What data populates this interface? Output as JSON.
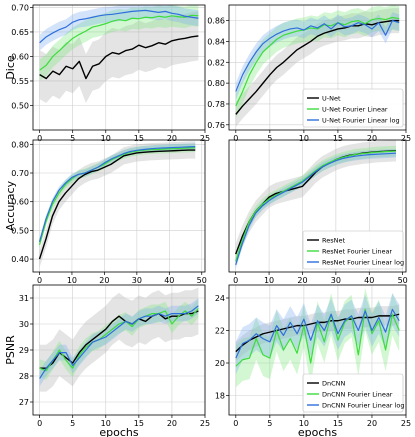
{
  "colors": {
    "black": "#000000",
    "green": "#3ddc3d",
    "blue": "#2f6fdc",
    "grid": "#cfcfcf"
  },
  "chart_data": [
    {
      "type": "line",
      "ylabel": "Dice",
      "xlabel": "",
      "xlim": [
        -1,
        25
      ],
      "ylim": [
        0.45,
        0.705
      ],
      "xticks": [
        "0",
        "5",
        "10",
        "15",
        "20",
        "25"
      ],
      "xtick_values": [
        0,
        5,
        10,
        15,
        20,
        25
      ],
      "yticks": [
        "0.50",
        "0.55",
        "0.60",
        "0.65",
        "0.70"
      ],
      "ytick_values": [
        0.5,
        0.55,
        0.6,
        0.65,
        0.7
      ],
      "grid": true,
      "legend": [],
      "x": [
        0,
        1,
        2,
        3,
        4,
        5,
        6,
        7,
        8,
        9,
        10,
        11,
        12,
        13,
        14,
        15,
        16,
        17,
        18,
        19,
        20,
        21,
        22,
        23,
        24
      ],
      "series": [
        {
          "color": "black",
          "band": 0.05,
          "values": [
            0.563,
            0.555,
            0.57,
            0.563,
            0.58,
            0.575,
            0.59,
            0.555,
            0.58,
            0.585,
            0.6,
            0.608,
            0.605,
            0.612,
            0.615,
            0.623,
            0.618,
            0.622,
            0.628,
            0.625,
            0.632,
            0.635,
            0.637,
            0.64,
            0.642
          ]
        },
        {
          "color": "green",
          "band": 0.022,
          "values": [
            0.572,
            0.582,
            0.6,
            0.612,
            0.625,
            0.637,
            0.645,
            0.652,
            0.66,
            0.663,
            0.667,
            0.672,
            0.675,
            0.673,
            0.678,
            0.677,
            0.68,
            0.679,
            0.682,
            0.68,
            0.683,
            0.681,
            0.68,
            0.684,
            0.683
          ]
        },
        {
          "color": "blue",
          "band": 0.016,
          "values": [
            0.628,
            0.64,
            0.648,
            0.655,
            0.66,
            0.67,
            0.675,
            0.677,
            0.68,
            0.683,
            0.685,
            0.686,
            0.688,
            0.69,
            0.692,
            0.693,
            0.694,
            0.692,
            0.69,
            0.692,
            0.688,
            0.686,
            0.682,
            0.68,
            0.678
          ]
        }
      ]
    },
    {
      "type": "line",
      "ylabel": "",
      "xlabel": "",
      "xlim": [
        -1,
        25
      ],
      "ylim": [
        0.755,
        0.875
      ],
      "xticks": [
        "0",
        "5",
        "10",
        "15",
        "20",
        "25"
      ],
      "xtick_values": [
        0,
        5,
        10,
        15,
        20,
        25
      ],
      "yticks": [
        "0.76",
        "0.78",
        "0.80",
        "0.82",
        "0.84",
        "0.86"
      ],
      "ytick_values": [
        0.76,
        0.78,
        0.8,
        0.82,
        0.84,
        0.86
      ],
      "grid": true,
      "legend_position": "bottom-right",
      "legend": [
        {
          "label": "U-Net",
          "color": "black"
        },
        {
          "label": "U-Net Fourier Linear",
          "color": "green"
        },
        {
          "label": "U-Net Fourier Linear log",
          "color": "blue"
        }
      ],
      "x": [
        0,
        1,
        2,
        3,
        4,
        5,
        6,
        7,
        8,
        9,
        10,
        11,
        12,
        13,
        14,
        15,
        16,
        17,
        18,
        19,
        20,
        21,
        22,
        23,
        24
      ],
      "series": [
        {
          "color": "black",
          "band": 0.012,
          "values": [
            0.77,
            0.778,
            0.785,
            0.792,
            0.8,
            0.808,
            0.815,
            0.82,
            0.826,
            0.832,
            0.836,
            0.84,
            0.845,
            0.848,
            0.85,
            0.852,
            0.853,
            0.855,
            0.855,
            0.857,
            0.856,
            0.858,
            0.859,
            0.86,
            0.86
          ]
        },
        {
          "color": "green",
          "band": 0.012,
          "values": [
            0.778,
            0.792,
            0.808,
            0.82,
            0.83,
            0.836,
            0.842,
            0.846,
            0.848,
            0.85,
            0.851,
            0.853,
            0.852,
            0.856,
            0.855,
            0.858,
            0.856,
            0.859,
            0.86,
            0.857,
            0.861,
            0.862,
            0.861,
            0.863,
            0.862
          ]
        },
        {
          "color": "blue",
          "band": 0.008,
          "values": [
            0.792,
            0.808,
            0.82,
            0.83,
            0.838,
            0.843,
            0.847,
            0.85,
            0.852,
            0.853,
            0.851,
            0.855,
            0.853,
            0.857,
            0.852,
            0.858,
            0.854,
            0.855,
            0.858,
            0.856,
            0.852,
            0.858,
            0.846,
            0.86,
            0.858
          ]
        }
      ]
    },
    {
      "type": "line",
      "ylabel": "Accuracy",
      "xlabel": "",
      "xlim": [
        -2,
        51
      ],
      "ylim": [
        0.355,
        0.815
      ],
      "xticks": [
        "0",
        "10",
        "20",
        "30",
        "40",
        "50"
      ],
      "xtick_values": [
        0,
        10,
        20,
        30,
        40,
        50
      ],
      "yticks": [
        "0.40",
        "0.50",
        "0.60",
        "0.70",
        "0.80"
      ],
      "ytick_values": [
        0.4,
        0.5,
        0.6,
        0.7,
        0.8
      ],
      "grid": true,
      "legend": [],
      "x": [
        0,
        2,
        4,
        6,
        8,
        10,
        12,
        14,
        16,
        18,
        20,
        22,
        24,
        26,
        28,
        30,
        32,
        34,
        36,
        38,
        40,
        42,
        44,
        46,
        48
      ],
      "series": [
        {
          "color": "black",
          "band": 0.03,
          "values": [
            0.4,
            0.47,
            0.55,
            0.6,
            0.63,
            0.655,
            0.68,
            0.695,
            0.705,
            0.71,
            0.72,
            0.73,
            0.745,
            0.76,
            0.765,
            0.77,
            0.772,
            0.774,
            0.775,
            0.776,
            0.777,
            0.778,
            0.779,
            0.78,
            0.78
          ]
        },
        {
          "color": "green",
          "band": 0.015,
          "values": [
            0.45,
            0.53,
            0.59,
            0.63,
            0.66,
            0.68,
            0.695,
            0.7,
            0.71,
            0.72,
            0.73,
            0.745,
            0.755,
            0.765,
            0.772,
            0.776,
            0.779,
            0.781,
            0.782,
            0.783,
            0.784,
            0.785,
            0.786,
            0.787,
            0.788
          ]
        },
        {
          "color": "blue",
          "band": 0.012,
          "values": [
            0.46,
            0.54,
            0.6,
            0.64,
            0.665,
            0.685,
            0.695,
            0.7,
            0.71,
            0.72,
            0.735,
            0.748,
            0.758,
            0.768,
            0.775,
            0.779,
            0.782,
            0.784,
            0.786,
            0.787,
            0.788,
            0.789,
            0.79,
            0.791,
            0.792
          ]
        }
      ]
    },
    {
      "type": "line",
      "ylabel": "",
      "xlabel": "",
      "xlim": [
        -2,
        51
      ],
      "ylim": [
        0.0,
        0.37
      ],
      "xticks": [
        "0",
        "10",
        "20",
        "30",
        "40",
        "50"
      ],
      "xtick_values": [
        0,
        10,
        20,
        30,
        40,
        50
      ],
      "yticks": [],
      "ytick_values": [],
      "grid": true,
      "legend_position": "bottom-right",
      "legend": [
        {
          "label": "ResNet",
          "color": "black"
        },
        {
          "label": "ResNet Fourier Linear",
          "color": "green"
        },
        {
          "label": "ResNet Fourier Linear log",
          "color": "blue"
        }
      ],
      "x": [
        0,
        2,
        4,
        6,
        8,
        10,
        12,
        14,
        16,
        18,
        20,
        22,
        24,
        26,
        28,
        30,
        32,
        34,
        36,
        38,
        40,
        42,
        44,
        46,
        48
      ],
      "series": [
        {
          "color": "black",
          "band": 0.03,
          "values": [
            0.05,
            0.1,
            0.14,
            0.17,
            0.19,
            0.21,
            0.22,
            0.225,
            0.23,
            0.235,
            0.24,
            0.26,
            0.28,
            0.295,
            0.305,
            0.315,
            0.322,
            0.327,
            0.33,
            0.333,
            0.335,
            0.337,
            0.338,
            0.339,
            0.34
          ]
        },
        {
          "color": "green",
          "band": 0.015,
          "values": [
            0.03,
            0.09,
            0.14,
            0.17,
            0.19,
            0.205,
            0.215,
            0.225,
            0.235,
            0.245,
            0.255,
            0.27,
            0.285,
            0.298,
            0.307,
            0.315,
            0.321,
            0.326,
            0.33,
            0.332,
            0.334,
            0.336,
            0.337,
            0.338,
            0.339
          ]
        },
        {
          "color": "blue",
          "band": 0.012,
          "values": [
            0.02,
            0.08,
            0.13,
            0.165,
            0.185,
            0.2,
            0.212,
            0.222,
            0.232,
            0.242,
            0.252,
            0.267,
            0.282,
            0.295,
            0.304,
            0.312,
            0.318,
            0.322,
            0.325,
            0.327,
            0.329,
            0.33,
            0.331,
            0.332,
            0.333
          ]
        }
      ]
    },
    {
      "type": "line",
      "ylabel": "PSNR",
      "xlabel": "epochs",
      "xlim": [
        -1,
        25
      ],
      "ylim": [
        26.5,
        31.5
      ],
      "xticks": [
        "0",
        "5",
        "10",
        "15",
        "20",
        "25"
      ],
      "xtick_values": [
        0,
        5,
        10,
        15,
        20,
        25
      ],
      "yticks": [
        "27",
        "28",
        "29",
        "30",
        "31"
      ],
      "ytick_values": [
        27,
        28,
        29,
        30,
        31
      ],
      "grid": true,
      "legend": [],
      "x": [
        0,
        1,
        2,
        3,
        4,
        5,
        6,
        7,
        8,
        9,
        10,
        11,
        12,
        13,
        14,
        15,
        16,
        17,
        18,
        19,
        20,
        21,
        22,
        23,
        24
      ],
      "series": [
        {
          "color": "black",
          "band": 0.9,
          "values": [
            28.3,
            28.3,
            28.5,
            28.9,
            28.7,
            28.5,
            28.9,
            29.2,
            29.4,
            29.6,
            29.8,
            30.1,
            30.3,
            30.1,
            30.0,
            30.2,
            30.1,
            30.3,
            30.4,
            30.2,
            30.3,
            30.3,
            30.4,
            30.4,
            30.5
          ]
        },
        {
          "color": "green",
          "band": 0.35,
          "values": [
            28.3,
            28.2,
            28.6,
            29.0,
            28.6,
            28.3,
            28.8,
            29.1,
            29.3,
            29.4,
            29.6,
            29.8,
            30.0,
            30.1,
            29.9,
            30.2,
            30.3,
            30.4,
            30.4,
            30.5,
            30.0,
            30.3,
            30.5,
            30.3,
            30.6
          ]
        },
        {
          "color": "blue",
          "band": 0.3,
          "values": [
            27.9,
            28.3,
            28.6,
            28.9,
            28.9,
            28.4,
            28.7,
            29.0,
            29.3,
            29.4,
            29.5,
            29.7,
            29.9,
            30.1,
            30.0,
            30.2,
            30.3,
            30.3,
            30.4,
            30.3,
            30.4,
            30.4,
            30.4,
            30.5,
            30.7
          ]
        }
      ]
    },
    {
      "type": "line",
      "ylabel": "",
      "xlabel": "epochs",
      "xlim": [
        -1,
        25
      ],
      "ylim": [
        16.8,
        24.8
      ],
      "xticks": [
        "0",
        "5",
        "10",
        "15",
        "20",
        "25"
      ],
      "xtick_values": [
        0,
        5,
        10,
        15,
        20,
        25
      ],
      "yticks": [
        "18",
        "20",
        "22",
        "24"
      ],
      "ytick_values": [
        18,
        20,
        22,
        24
      ],
      "grid": true,
      "legend_position": "bottom-right",
      "legend": [
        {
          "label": "DnCNN",
          "color": "black"
        },
        {
          "label": "DnCNN Fourier Linear",
          "color": "green"
        },
        {
          "label": "DnCNN Fourier Linear log",
          "color": "blue"
        }
      ],
      "x": [
        0,
        1,
        2,
        3,
        4,
        5,
        6,
        7,
        8,
        9,
        10,
        11,
        12,
        13,
        14,
        15,
        16,
        17,
        18,
        19,
        20,
        21,
        22,
        23,
        24
      ],
      "series": [
        {
          "color": "black",
          "band": 0.6,
          "values": [
            20.7,
            21.1,
            21.4,
            21.6,
            21.8,
            21.9,
            22.0,
            22.1,
            22.2,
            22.3,
            22.3,
            22.4,
            22.5,
            22.5,
            22.6,
            22.6,
            22.7,
            22.7,
            22.8,
            22.8,
            22.8,
            22.9,
            22.9,
            22.9,
            23.0
          ]
        },
        {
          "color": "green",
          "band": 1.3,
          "values": [
            19.8,
            20.2,
            20.3,
            21.5,
            20.5,
            20.3,
            22.0,
            20.8,
            21.5,
            20.6,
            22.3,
            20.0,
            22.5,
            21.3,
            23.0,
            21.4,
            22.5,
            22.9,
            20.5,
            23.3,
            21.8,
            22.6,
            20.8,
            23.0,
            22.0
          ]
        },
        {
          "color": "blue",
          "band": 1.0,
          "values": [
            20.3,
            21.2,
            21.4,
            21.8,
            21.5,
            21.3,
            22.3,
            21.7,
            22.5,
            21.8,
            22.7,
            21.4,
            22.6,
            22.0,
            23.0,
            21.8,
            22.6,
            22.9,
            22.0,
            23.2,
            22.0,
            22.8,
            21.9,
            23.3,
            22.6
          ]
        }
      ]
    }
  ]
}
